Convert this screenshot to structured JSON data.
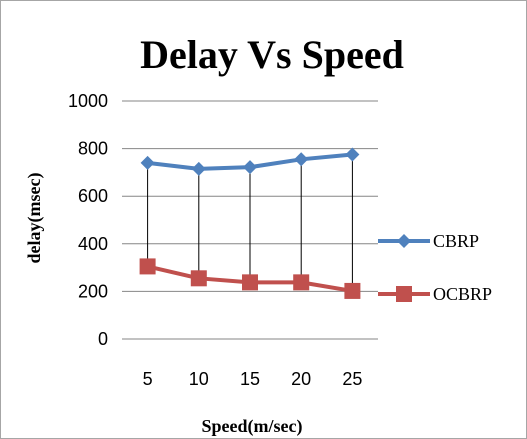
{
  "chart_data": {
    "type": "line",
    "title": "Delay Vs Speed",
    "xlabel": "Speed(m/sec)",
    "ylabel": "delay(msec)",
    "categories": [
      "5",
      "10",
      "15",
      "20",
      "25"
    ],
    "ylim": [
      0,
      1000
    ],
    "yticks": [
      "0",
      "200",
      "400",
      "600",
      "800",
      "1000"
    ],
    "grid": true,
    "legend_position": "right",
    "drop_lines": true,
    "series": [
      {
        "name": "CBRP",
        "values": [
          740,
          715,
          722,
          755,
          775
        ],
        "color": "#4f81bd",
        "marker": "diamond"
      },
      {
        "name": "OCBRP",
        "values": [
          305,
          255,
          238,
          238,
          202
        ],
        "color": "#c0504d",
        "marker": "square"
      }
    ]
  }
}
